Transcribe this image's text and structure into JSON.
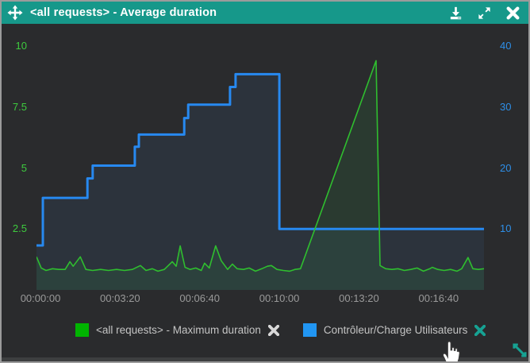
{
  "titlebar": {
    "title": "<all requests> - Average duration",
    "icons": [
      "move-icon",
      "download-icon",
      "expand-icon",
      "close-icon"
    ]
  },
  "colors": {
    "titlebar_bg": "#16988a",
    "panel_bg": "#2a2b2d",
    "green_series": "#2fbe2f",
    "blue_series": "#2789f0",
    "left_axis_text": "#3ecb3e",
    "right_axis_text": "#2e8fe8",
    "x_axis_text": "#9a9a9a",
    "legend_text": "#c4c4c4",
    "accent_teal": "#16a293"
  },
  "chart_data": {
    "type": "line",
    "title": "<all requests> - Average duration",
    "grid": false,
    "legend_position": "bottom",
    "x_range": [
      -10,
      1114
    ],
    "x_ticks": [
      {
        "t": 0,
        "label": "00:00:00"
      },
      {
        "t": 200,
        "label": "00:03:20"
      },
      {
        "t": 400,
        "label": "00:06:40"
      },
      {
        "t": 600,
        "label": "00:10:00"
      },
      {
        "t": 800,
        "label": "00:13:20"
      },
      {
        "t": 1000,
        "label": "00:16:40"
      }
    ],
    "y_left_max": 10.53,
    "y_left_ticks": [
      10,
      7.5,
      5,
      2.5
    ],
    "y_right_max": 42.1,
    "y_right_ticks": [
      40,
      30,
      20,
      10
    ],
    "series": [
      {
        "name": "Contrôleur/Charge Utilisateurs",
        "axis": "y_right",
        "color": "#2789f0",
        "width": 3,
        "fill": "rgba(70,130,200,0.10)",
        "points": [
          [
            -10,
            7.3
          ],
          [
            6,
            7.3
          ],
          [
            6,
            15.1
          ],
          [
            118,
            15.1
          ],
          [
            118,
            18.3
          ],
          [
            131,
            18.3
          ],
          [
            131,
            20.4
          ],
          [
            237,
            20.4
          ],
          [
            237,
            23.5
          ],
          [
            247,
            23.5
          ],
          [
            247,
            25.5
          ],
          [
            361,
            25.5
          ],
          [
            361,
            28.2
          ],
          [
            371,
            28.2
          ],
          [
            371,
            30.4
          ],
          [
            476,
            30.4
          ],
          [
            476,
            33.3
          ],
          [
            490,
            33.3
          ],
          [
            490,
            35.4
          ],
          [
            600,
            35.4
          ],
          [
            600,
            10
          ],
          [
            1114,
            10
          ]
        ]
      },
      {
        "name": "<all requests> - Maximum duration",
        "axis": "y_left",
        "color": "#2fbe2f",
        "width": 1.6,
        "fill": "rgba(50,200,80,0.10)",
        "points": [
          [
            -10,
            1.36
          ],
          [
            2,
            0.9
          ],
          [
            14,
            0.8
          ],
          [
            30,
            0.87
          ],
          [
            46,
            0.84
          ],
          [
            62,
            0.84
          ],
          [
            74,
            1.16
          ],
          [
            82,
            0.97
          ],
          [
            100,
            1.36
          ],
          [
            114,
            0.84
          ],
          [
            131,
            0.8
          ],
          [
            151,
            0.84
          ],
          [
            171,
            0.8
          ],
          [
            191,
            0.84
          ],
          [
            211,
            0.8
          ],
          [
            231,
            0.84
          ],
          [
            251,
            1.0
          ],
          [
            265,
            0.8
          ],
          [
            281,
            0.87
          ],
          [
            295,
            0.77
          ],
          [
            311,
            0.84
          ],
          [
            331,
            1.16
          ],
          [
            341,
            0.97
          ],
          [
            351,
            1.81
          ],
          [
            363,
            0.93
          ],
          [
            376,
            0.84
          ],
          [
            390,
            0.9
          ],
          [
            404,
            0.8
          ],
          [
            412,
            1.1
          ],
          [
            424,
            0.9
          ],
          [
            440,
            1.81
          ],
          [
            454,
            1.2
          ],
          [
            470,
            0.84
          ],
          [
            482,
            1.06
          ],
          [
            494,
            0.87
          ],
          [
            510,
            0.84
          ],
          [
            524,
            0.9
          ],
          [
            540,
            0.77
          ],
          [
            556,
            0.87
          ],
          [
            570,
            0.97
          ],
          [
            580,
            1.0
          ],
          [
            594,
            0.84
          ],
          [
            610,
            0.8
          ],
          [
            626,
            0.77
          ],
          [
            639,
            0.84
          ],
          [
            653,
            0.87
          ],
          [
            843,
            9.41
          ],
          [
            853,
            1.0
          ],
          [
            867,
            0.87
          ],
          [
            883,
            0.84
          ],
          [
            898,
            0.87
          ],
          [
            914,
            0.8
          ],
          [
            930,
            0.84
          ],
          [
            946,
            0.9
          ],
          [
            962,
            0.77
          ],
          [
            978,
            0.87
          ],
          [
            984,
            0.93
          ],
          [
            998,
            0.84
          ],
          [
            1014,
            0.8
          ],
          [
            1030,
            0.84
          ],
          [
            1046,
            0.77
          ],
          [
            1058,
            0.87
          ],
          [
            1074,
            1.33
          ],
          [
            1086,
            0.87
          ],
          [
            1100,
            0.84
          ],
          [
            1114,
            0.87
          ]
        ]
      }
    ]
  },
  "legend": {
    "items": [
      {
        "label": "<all requests> - Maximum duration",
        "color": "#00b400",
        "close_color": "#d8d8d8"
      },
      {
        "label": "Contrôleur/Charge Utilisateurs",
        "color": "#2196f3",
        "close_color": "#16a293"
      }
    ]
  },
  "overlay": {
    "cursor": "hand-pointer",
    "resize_handle": "diagonal-resize"
  }
}
